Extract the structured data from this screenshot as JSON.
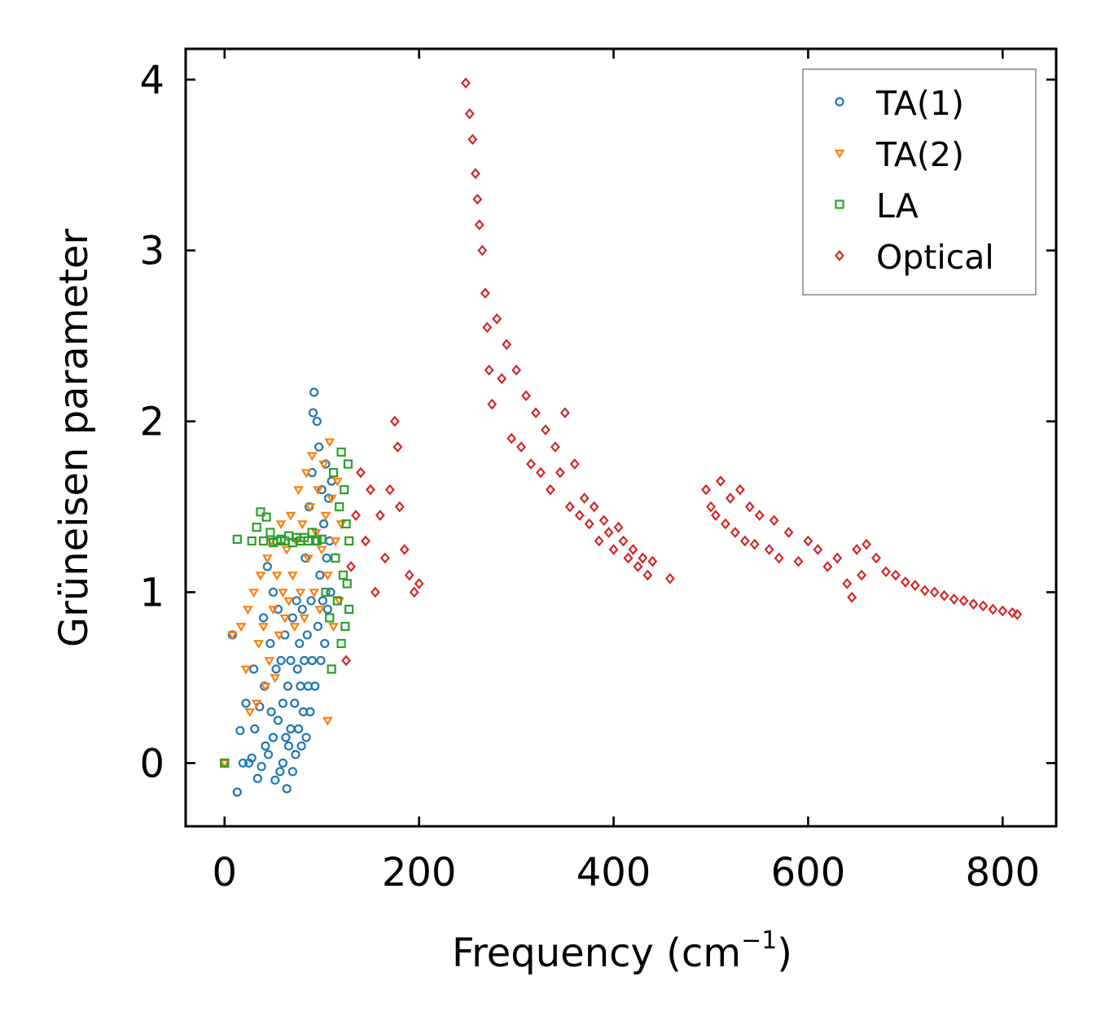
{
  "chart_data": {
    "type": "scatter",
    "title": "",
    "xlabel": "Frequency (cm",
    "xlabel_superscript": "−1",
    "xlabel_suffix": ")",
    "ylabel": "Grüneisen parameter",
    "xlim": [
      -40,
      855
    ],
    "ylim": [
      -0.37,
      4.18
    ],
    "x_ticks": [
      0,
      200,
      400,
      600,
      800
    ],
    "x_tick_labels": [
      "0",
      "200",
      "400",
      "600",
      "800"
    ],
    "y_ticks": [
      0,
      1,
      2,
      3,
      4
    ],
    "y_tick_labels": [
      "0",
      "1",
      "2",
      "3",
      "4"
    ],
    "legend_position": "top-right",
    "series": [
      {
        "name": "TA(1)",
        "marker": "circle",
        "color": "#1f77b4",
        "points": [
          [
            0,
            0.0
          ],
          [
            8,
            0.75
          ],
          [
            13,
            -0.17
          ],
          [
            16,
            0.19
          ],
          [
            19,
            0.0
          ],
          [
            22,
            0.35
          ],
          [
            25,
            0.0
          ],
          [
            28,
            0.03
          ],
          [
            30,
            0.55
          ],
          [
            31,
            0.2
          ],
          [
            34,
            -0.09
          ],
          [
            36,
            0.33
          ],
          [
            38,
            -0.02
          ],
          [
            40,
            0.85
          ],
          [
            41,
            0.45
          ],
          [
            42,
            0.1
          ],
          [
            44,
            1.15
          ],
          [
            45,
            0.05
          ],
          [
            47,
            0.7
          ],
          [
            48,
            0.3
          ],
          [
            50,
            1.0
          ],
          [
            50,
            0.15
          ],
          [
            52,
            -0.1
          ],
          [
            53,
            0.55
          ],
          [
            55,
            0.9
          ],
          [
            55,
            0.25
          ],
          [
            57,
            -0.05
          ],
          [
            58,
            0.6
          ],
          [
            60,
            0.35
          ],
          [
            60,
            0.0
          ],
          [
            62,
            0.75
          ],
          [
            63,
            0.15
          ],
          [
            64,
            -0.15
          ],
          [
            65,
            0.45
          ],
          [
            66,
            0.1
          ],
          [
            68,
            0.6
          ],
          [
            68,
            0.2
          ],
          [
            70,
            -0.05
          ],
          [
            70,
            0.85
          ],
          [
            72,
            0.35
          ],
          [
            73,
            0.05
          ],
          [
            74,
            0.95
          ],
          [
            75,
            0.55
          ],
          [
            76,
            0.2
          ],
          [
            77,
            0.7
          ],
          [
            78,
            0.45
          ],
          [
            79,
            0.1
          ],
          [
            80,
            0.9
          ],
          [
            81,
            0.3
          ],
          [
            82,
            0.6
          ],
          [
            83,
            1.2
          ],
          [
            84,
            0.15
          ],
          [
            85,
            0.75
          ],
          [
            86,
            0.45
          ],
          [
            87,
            1.5
          ],
          [
            88,
            0.3
          ],
          [
            89,
            0.95
          ],
          [
            90,
            0.6
          ],
          [
            90,
            1.7
          ],
          [
            91,
            2.05
          ],
          [
            92,
            2.17
          ],
          [
            93,
            0.45
          ],
          [
            94,
            1.3
          ],
          [
            95,
            2.0
          ],
          [
            96,
            0.8
          ],
          [
            97,
            1.85
          ],
          [
            98,
            1.1
          ],
          [
            99,
            0.6
          ],
          [
            100,
            1.6
          ],
          [
            101,
            0.95
          ],
          [
            102,
            1.4
          ],
          [
            103,
            0.7
          ],
          [
            104,
            1.75
          ],
          [
            105,
            1.2
          ],
          [
            106,
            0.9
          ],
          [
            107,
            1.55
          ],
          [
            108,
            1.3
          ],
          [
            109,
            1.0
          ],
          [
            110,
            1.65
          ]
        ]
      },
      {
        "name": "TA(2)",
        "marker": "triangle-down",
        "color": "#ff7f0e",
        "points": [
          [
            0,
            0.0
          ],
          [
            8,
            0.75
          ],
          [
            17,
            0.8
          ],
          [
            22,
            0.55
          ],
          [
            24,
            0.9
          ],
          [
            26,
            0.3
          ],
          [
            30,
            1.0
          ],
          [
            33,
            0.35
          ],
          [
            35,
            0.7
          ],
          [
            37,
            1.1
          ],
          [
            40,
            0.8
          ],
          [
            42,
            0.45
          ],
          [
            44,
            1.2
          ],
          [
            46,
            0.6
          ],
          [
            48,
            1.3
          ],
          [
            50,
            0.9
          ],
          [
            52,
            0.5
          ],
          [
            54,
            1.1
          ],
          [
            56,
            0.75
          ],
          [
            58,
            1.4
          ],
          [
            60,
            1.0
          ],
          [
            62,
            0.85
          ],
          [
            64,
            1.25
          ],
          [
            66,
            0.95
          ],
          [
            68,
            1.45
          ],
          [
            70,
            1.1
          ],
          [
            72,
            0.8
          ],
          [
            74,
            1.3
          ],
          [
            76,
            1.6
          ],
          [
            78,
            1.0
          ],
          [
            80,
            1.4
          ],
          [
            82,
            0.85
          ],
          [
            84,
            1.7
          ],
          [
            86,
            1.2
          ],
          [
            88,
            1.5
          ],
          [
            90,
            1.8
          ],
          [
            92,
            1.0
          ],
          [
            94,
            1.35
          ],
          [
            96,
            1.6
          ],
          [
            98,
            0.9
          ],
          [
            100,
            1.25
          ],
          [
            102,
            1.75
          ],
          [
            104,
            1.45
          ],
          [
            106,
            0.25
          ],
          [
            106,
            1.1
          ],
          [
            108,
            1.88
          ],
          [
            110,
            1.55
          ],
          [
            112,
            0.8
          ],
          [
            114,
            1.3
          ],
          [
            116,
            1.65
          ],
          [
            118,
            0.95
          ],
          [
            120,
            1.4
          ]
        ]
      },
      {
        "name": "LA",
        "marker": "square",
        "color": "#2ca02c",
        "points": [
          [
            0,
            0.0
          ],
          [
            13,
            1.31
          ],
          [
            28,
            1.3
          ],
          [
            33,
            1.38
          ],
          [
            37,
            1.47
          ],
          [
            40,
            1.3
          ],
          [
            43,
            1.44
          ],
          [
            47,
            1.35
          ],
          [
            50,
            1.29
          ],
          [
            54,
            1.3
          ],
          [
            58,
            1.31
          ],
          [
            62,
            1.3
          ],
          [
            66,
            1.33
          ],
          [
            70,
            1.29
          ],
          [
            74,
            1.32
          ],
          [
            78,
            1.3
          ],
          [
            82,
            1.32
          ],
          [
            86,
            1.3
          ],
          [
            90,
            1.35
          ],
          [
            95,
            1.3
          ],
          [
            100,
            1.31
          ],
          [
            104,
            1.0
          ],
          [
            108,
            0.85
          ],
          [
            110,
            0.55
          ],
          [
            112,
            1.7
          ],
          [
            114,
            1.2
          ],
          [
            116,
            0.95
          ],
          [
            118,
            1.5
          ],
          [
            120,
            1.82
          ],
          [
            120,
            0.7
          ],
          [
            122,
            1.1
          ],
          [
            123,
            1.6
          ],
          [
            124,
            0.8
          ],
          [
            125,
            1.4
          ],
          [
            126,
            1.05
          ],
          [
            127,
            1.75
          ],
          [
            128,
            0.9
          ],
          [
            128,
            1.3
          ]
        ]
      },
      {
        "name": "Optical",
        "marker": "diamond",
        "color": "#d62728",
        "points": [
          [
            125,
            0.6
          ],
          [
            130,
            1.15
          ],
          [
            135,
            1.45
          ],
          [
            140,
            1.7
          ],
          [
            145,
            1.3
          ],
          [
            150,
            1.6
          ],
          [
            155,
            1.0
          ],
          [
            160,
            1.45
          ],
          [
            165,
            1.2
          ],
          [
            170,
            1.6
          ],
          [
            175,
            2.0
          ],
          [
            178,
            1.85
          ],
          [
            180,
            1.5
          ],
          [
            185,
            1.25
          ],
          [
            190,
            1.1
          ],
          [
            195,
            1.0
          ],
          [
            200,
            1.05
          ],
          [
            248,
            3.98
          ],
          [
            252,
            3.8
          ],
          [
            255,
            3.65
          ],
          [
            258,
            3.45
          ],
          [
            260,
            3.3
          ],
          [
            262,
            3.15
          ],
          [
            265,
            3.0
          ],
          [
            268,
            2.75
          ],
          [
            270,
            2.55
          ],
          [
            272,
            2.3
          ],
          [
            275,
            2.1
          ],
          [
            280,
            2.6
          ],
          [
            285,
            2.25
          ],
          [
            290,
            2.45
          ],
          [
            295,
            1.9
          ],
          [
            300,
            2.3
          ],
          [
            305,
            1.85
          ],
          [
            310,
            2.15
          ],
          [
            315,
            1.75
          ],
          [
            320,
            2.05
          ],
          [
            325,
            1.7
          ],
          [
            330,
            1.95
          ],
          [
            335,
            1.6
          ],
          [
            340,
            1.85
          ],
          [
            345,
            1.7
          ],
          [
            350,
            2.05
          ],
          [
            355,
            1.5
          ],
          [
            360,
            1.75
          ],
          [
            365,
            1.45
          ],
          [
            370,
            1.55
          ],
          [
            375,
            1.4
          ],
          [
            380,
            1.5
          ],
          [
            385,
            1.3
          ],
          [
            390,
            1.42
          ],
          [
            395,
            1.35
          ],
          [
            400,
            1.25
          ],
          [
            405,
            1.38
          ],
          [
            410,
            1.3
          ],
          [
            415,
            1.2
          ],
          [
            420,
            1.25
          ],
          [
            425,
            1.15
          ],
          [
            430,
            1.2
          ],
          [
            435,
            1.1
          ],
          [
            440,
            1.18
          ],
          [
            458,
            1.08
          ],
          [
            495,
            1.6
          ],
          [
            500,
            1.5
          ],
          [
            505,
            1.45
          ],
          [
            510,
            1.65
          ],
          [
            515,
            1.4
          ],
          [
            520,
            1.55
          ],
          [
            525,
            1.35
          ],
          [
            530,
            1.6
          ],
          [
            535,
            1.3
          ],
          [
            540,
            1.5
          ],
          [
            545,
            1.28
          ],
          [
            550,
            1.45
          ],
          [
            560,
            1.25
          ],
          [
            565,
            1.42
          ],
          [
            570,
            1.2
          ],
          [
            580,
            1.35
          ],
          [
            590,
            1.18
          ],
          [
            600,
            1.3
          ],
          [
            610,
            1.25
          ],
          [
            620,
            1.15
          ],
          [
            630,
            1.2
          ],
          [
            640,
            1.05
          ],
          [
            645,
            0.97
          ],
          [
            650,
            1.25
          ],
          [
            655,
            1.1
          ],
          [
            660,
            1.28
          ],
          [
            670,
            1.2
          ],
          [
            680,
            1.12
          ],
          [
            690,
            1.1
          ],
          [
            700,
            1.06
          ],
          [
            710,
            1.04
          ],
          [
            720,
            1.01
          ],
          [
            730,
            1.0
          ],
          [
            740,
            0.98
          ],
          [
            750,
            0.96
          ],
          [
            760,
            0.95
          ],
          [
            770,
            0.93
          ],
          [
            780,
            0.92
          ],
          [
            790,
            0.9
          ],
          [
            800,
            0.89
          ],
          [
            810,
            0.88
          ],
          [
            815,
            0.87
          ]
        ]
      }
    ]
  }
}
